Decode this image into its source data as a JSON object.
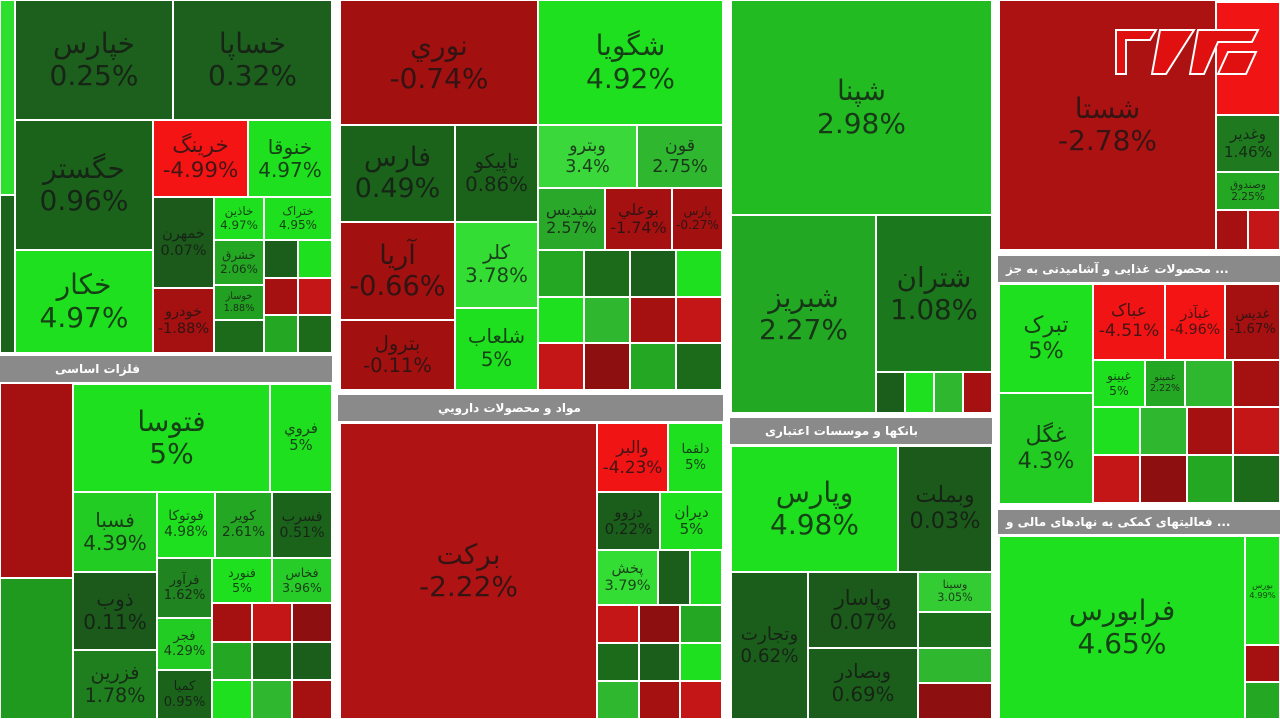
{
  "headers": [
    "فلزات اساسی",
    "مواد و محصولات دارويي",
    "بانکها و موسسات اعتباری",
    "محصولات غذایی و آشامیدنی به جز ...",
    "فعالیتهای کمکی به نهادهای مالی و ..."
  ],
  "panels": [
    {
      "tiles": [
        {
          "name": "خپارس",
          "change": "0.25%",
          "color": "#1d5f1d"
        },
        {
          "name": "خساپا",
          "change": "0.32%",
          "color": "#1d5f1d"
        },
        {
          "name": "حگستر",
          "change": "0.96%",
          "color": "#1b631b"
        },
        {
          "name": "خکار",
          "change": "4.97%",
          "color": "#1ee01e"
        },
        {
          "name": "خرینگ",
          "change": "-4.99%",
          "color": "#f51414"
        },
        {
          "name": "خنوقا",
          "change": "4.97%",
          "color": "#1ee01e"
        },
        {
          "name": "خمهرن",
          "change": "0.07%",
          "color": "#1b5a1b"
        },
        {
          "name": "خودرو",
          "change": "-1.88%",
          "color": "#a51010"
        },
        {
          "name": "خاذين",
          "change": "4.97%",
          "color": "#1ee01e"
        },
        {
          "name": "ختراک",
          "change": "4.95%",
          "color": "#1ee01e"
        },
        {
          "name": "خشرق",
          "change": "2.06%",
          "color": "#24a824"
        },
        {
          "name": "خوساز",
          "change": "1.88%",
          "color": "#22a022"
        }
      ]
    },
    {
      "tiles": [
        {
          "name": "فتوسا",
          "change": "5%",
          "color": "#1ee01e"
        },
        {
          "name": "فروي",
          "change": "5%",
          "color": "#1ee01e"
        },
        {
          "name": "فسبا",
          "change": "4.39%",
          "color": "#22cc22"
        },
        {
          "name": "فوتوکا",
          "change": "4.98%",
          "color": "#1ee01e"
        },
        {
          "name": "کویر",
          "change": "2.61%",
          "color": "#24a824"
        },
        {
          "name": "فسرب",
          "change": "0.51%",
          "color": "#1b631b"
        },
        {
          "name": "ذوب",
          "change": "0.11%",
          "color": "#1b5a1b"
        },
        {
          "name": "فزرين",
          "change": "1.78%",
          "color": "#1f7f1f"
        },
        {
          "name": "فرآور",
          "change": "1.62%",
          "color": "#208420"
        },
        {
          "name": "فنورد",
          "change": "5%",
          "color": "#1ee01e"
        },
        {
          "name": "فخاس",
          "change": "3.96%",
          "color": "#28cc28"
        },
        {
          "name": "فجر",
          "change": "4.29%",
          "color": "#22cc22"
        },
        {
          "name": "کمیا",
          "change": "0.95%",
          "color": "#1b631b"
        }
      ]
    },
    {
      "tiles": [
        {
          "name": "نوري",
          "change": "-0.74%",
          "color": "#a31010"
        },
        {
          "name": "شگويا",
          "change": "4.92%",
          "color": "#1ee01e"
        },
        {
          "name": "فارس",
          "change": "0.49%",
          "color": "#1b631b"
        },
        {
          "name": "تاپيکو",
          "change": "0.86%",
          "color": "#1b631b"
        },
        {
          "name": "وبترو",
          "change": "3.4%",
          "color": "#3ad83a"
        },
        {
          "name": "قون",
          "change": "2.75%",
          "color": "#2fb82f"
        },
        {
          "name": "شپديس",
          "change": "2.57%",
          "color": "#2aa82a"
        },
        {
          "name": "بوعلي",
          "change": "-1.74%",
          "color": "#a51010"
        },
        {
          "name": "پارس",
          "change": "-0.27%",
          "color": "#a31010"
        },
        {
          "name": "آريا",
          "change": "-0.66%",
          "color": "#a31010"
        },
        {
          "name": "کلر",
          "change": "3.78%",
          "color": "#33dd33"
        },
        {
          "name": "شلعاب",
          "change": "5%",
          "color": "#1ee01e"
        },
        {
          "name": "بترول",
          "change": "-0.11%",
          "color": "#a31010"
        }
      ]
    },
    {
      "tiles": [
        {
          "name": "برکت",
          "change": "-2.22%",
          "color": "#b01313"
        },
        {
          "name": "والبر",
          "change": "-4.23%",
          "color": "#f01414"
        },
        {
          "name": "دلقما",
          "change": "5%",
          "color": "#1ee01e"
        },
        {
          "name": "دزوو",
          "change": "0.22%",
          "color": "#1b5e1b"
        },
        {
          "name": "ديران",
          "change": "5%",
          "color": "#1ee01e"
        },
        {
          "name": "پخش",
          "change": "3.79%",
          "color": "#33dd33"
        }
      ]
    },
    {
      "tiles": [
        {
          "name": "شپنا",
          "change": "2.98%",
          "color": "#22bb22"
        },
        {
          "name": "شبريز",
          "change": "2.27%",
          "color": "#22a822"
        },
        {
          "name": "شتران",
          "change": "1.08%",
          "color": "#1c781c"
        }
      ]
    },
    {
      "tiles": [
        {
          "name": "وپارس",
          "change": "4.98%",
          "color": "#1ee01e"
        },
        {
          "name": "وبملت",
          "change": "0.03%",
          "color": "#1b5a1b"
        },
        {
          "name": "وتجارت",
          "change": "0.62%",
          "color": "#1b5e1b"
        },
        {
          "name": "وپاسار",
          "change": "0.07%",
          "color": "#1b5a1b"
        },
        {
          "name": "وسينا",
          "change": "3.05%",
          "color": "#33cc33"
        },
        {
          "name": "وبصادر",
          "change": "0.69%",
          "color": "#1b5e1b"
        }
      ]
    },
    {
      "tiles": [
        {
          "name": "شستا",
          "change": "-2.78%",
          "color": "#ad1212"
        },
        {
          "name": "وغدير",
          "change": "1.46%",
          "color": "#1f7a1f"
        },
        {
          "name": "وصندوق",
          "change": "2.25%",
          "color": "#24a824"
        }
      ]
    },
    {
      "tiles": [
        {
          "name": "تبرک",
          "change": "5%",
          "color": "#1ee01e"
        },
        {
          "name": "غگل",
          "change": "4.3%",
          "color": "#22cc22"
        },
        {
          "name": "عباک",
          "change": "-4.51%",
          "color": "#f01414"
        },
        {
          "name": "غبآذر",
          "change": "-4.96%",
          "color": "#f51414"
        },
        {
          "name": "غدیس",
          "change": "-1.67%",
          "color": "#a51010"
        },
        {
          "name": "غبینو",
          "change": "5%",
          "color": "#1ee01e"
        },
        {
          "name": "غمینو",
          "change": "2.22%",
          "color": "#24a824"
        }
      ]
    },
    {
      "tiles": [
        {
          "name": "فرابورس",
          "change": "4.65%",
          "color": "#1ee01e"
        },
        {
          "name": "بورس",
          "change": "4.99%",
          "color": "#1ee01e"
        }
      ]
    }
  ]
}
